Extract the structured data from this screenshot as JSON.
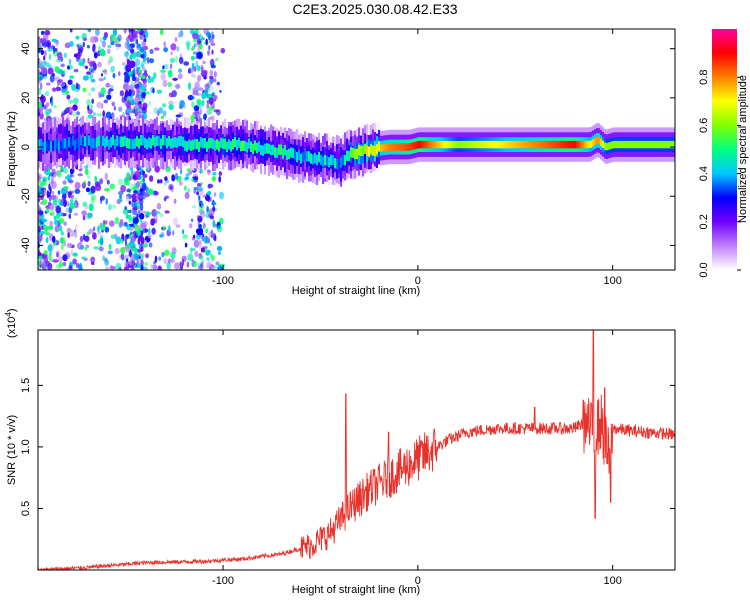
{
  "title": "C2E3.2025.030.08.42.E33",
  "chart_data": [
    {
      "type": "heatmap",
      "xlabel": "Height of straight line (km)",
      "ylabel": "Frequency (Hz)",
      "xlim": [
        -195,
        132
      ],
      "ylim": [
        -50,
        48
      ],
      "xticks": [
        -100,
        0,
        100
      ],
      "yticks": [
        -40,
        -20,
        0,
        20,
        40
      ],
      "colorbar": {
        "label": "Normalized spectral amplitude",
        "range": [
          0,
          1
        ],
        "ticks": [
          0.0,
          0.2,
          0.4,
          0.6,
          0.8
        ],
        "colors": [
          "#ffffff",
          "#c080ff",
          "#7000ff",
          "#0000ff",
          "#00c8ff",
          "#00ff80",
          "#80ff00",
          "#ffff00",
          "#ff8000",
          "#ff0000",
          "#ff00a0"
        ]
      },
      "ridge": {
        "x": [
          -195,
          -170,
          -140,
          -110,
          -90,
          -70,
          -60,
          -50,
          -40,
          -35,
          -25,
          -15,
          -5,
          0,
          20,
          40,
          60,
          80,
          88,
          92,
          96,
          100,
          132
        ],
        "y": [
          1,
          2,
          2,
          1,
          1,
          -2,
          -4,
          -5,
          -6,
          -3,
          -1,
          0,
          0,
          1,
          1,
          1,
          1,
          1,
          1,
          3,
          0,
          1,
          1
        ],
        "peak_amplitude": [
          0.35,
          0.4,
          0.45,
          0.45,
          0.5,
          0.45,
          0.4,
          0.45,
          0.4,
          0.5,
          0.7,
          0.8,
          0.85,
          0.9,
          0.6,
          0.7,
          0.8,
          0.9,
          0.7,
          0.8,
          0.6,
          0.6,
          0.6
        ]
      }
    },
    {
      "type": "line",
      "xlabel": "Height of straight line (km)",
      "ylabel": "SNR (10 * v/v)",
      "scale_label": "(x10",
      "scale_exp": "4",
      "xlim": [
        -195,
        132
      ],
      "ylim": [
        0,
        1.95
      ],
      "xticks": [
        -100,
        0,
        100
      ],
      "yticks": [
        0.5,
        1.0,
        1.5
      ],
      "color": "#e8312a",
      "trend": {
        "x": [
          -195,
          -170,
          -140,
          -110,
          -90,
          -70,
          -55,
          -45,
          -35,
          -25,
          -15,
          -5,
          5,
          15,
          25,
          40,
          60,
          80,
          86,
          90,
          94,
          98,
          100,
          110,
          132
        ],
        "y": [
          0.0,
          0.02,
          0.06,
          0.07,
          0.09,
          0.13,
          0.2,
          0.3,
          0.5,
          0.65,
          0.75,
          0.85,
          0.95,
          1.05,
          1.12,
          1.15,
          1.15,
          1.15,
          1.2,
          1.1,
          1.2,
          0.9,
          1.15,
          1.13,
          1.1
        ]
      },
      "spikes": [
        {
          "x": -37,
          "y": 1.43
        },
        {
          "x": -15,
          "y": 1.12
        },
        {
          "x": 60,
          "y": 1.32
        },
        {
          "x": 85,
          "y": 1.38
        },
        {
          "x": 90,
          "y": 1.95
        },
        {
          "x": 91,
          "y": 0.42
        },
        {
          "x": 96,
          "y": 1.48
        },
        {
          "x": 99,
          "y": 0.55
        }
      ]
    }
  ]
}
